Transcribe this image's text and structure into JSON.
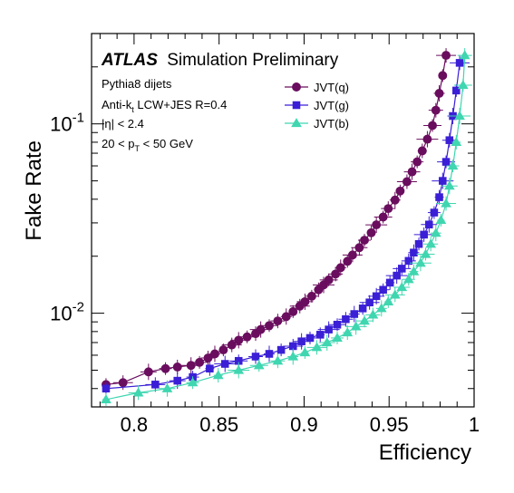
{
  "chart_data": {
    "type": "line",
    "title": "",
    "xlabel": "Efficiency",
    "ylabel": "Fake Rate",
    "xlim": [
      0.775,
      1.0
    ],
    "ylim": [
      0.0032,
      0.3
    ],
    "yscale": "log",
    "grid": false,
    "legend_position": "top-right",
    "x_ticks": [
      {
        "value": 0.8,
        "label": "0.8"
      },
      {
        "value": 0.85,
        "label": "0.85"
      },
      {
        "value": 0.9,
        "label": "0.9"
      },
      {
        "value": 0.95,
        "label": "0.95"
      },
      {
        "value": 1.0,
        "label": "1"
      }
    ],
    "y_ticks": [
      {
        "value": 0.01,
        "base": "10",
        "exp": "-2"
      },
      {
        "value": 0.1,
        "base": "10",
        "exp": "-1"
      }
    ],
    "annotations": {
      "atlas": "ATLAS",
      "atlas_sub": "Simulation Preliminary",
      "sample": "Pythia8 dijets",
      "jets_a": "Anti-k",
      "jets_sub": "t",
      "jets_b": " LCW+JES R=0.4",
      "eta": "|η| < 2.4",
      "pt_a": "20 < p",
      "pt_sub": "T",
      "pt_b": " < 50 GeV"
    },
    "series": [
      {
        "name": "JVT(q)",
        "color": "#6a0d5e",
        "marker": "circle",
        "points": [
          [
            0.7835,
            0.0042
          ],
          [
            0.7935,
            0.0043
          ],
          [
            0.8085,
            0.0049
          ],
          [
            0.8185,
            0.0051
          ],
          [
            0.8255,
            0.0052
          ],
          [
            0.8335,
            0.0053
          ],
          [
            0.8385,
            0.0055
          ],
          [
            0.8435,
            0.0058
          ],
          [
            0.8475,
            0.0061
          ],
          [
            0.8525,
            0.0064
          ],
          [
            0.8575,
            0.0068
          ],
          [
            0.8615,
            0.0072
          ],
          [
            0.8665,
            0.0075
          ],
          [
            0.8715,
            0.0078
          ],
          [
            0.8745,
            0.0082
          ],
          [
            0.8795,
            0.0086
          ],
          [
            0.8845,
            0.0091
          ],
          [
            0.8895,
            0.0096
          ],
          [
            0.8935,
            0.0102
          ],
          [
            0.8975,
            0.0109
          ],
          [
            0.9005,
            0.0115
          ],
          [
            0.9045,
            0.0123
          ],
          [
            0.9085,
            0.0133
          ],
          [
            0.9115,
            0.0141
          ],
          [
            0.9145,
            0.015
          ],
          [
            0.9185,
            0.0161
          ],
          [
            0.9215,
            0.0174
          ],
          [
            0.9255,
            0.0188
          ],
          [
            0.9285,
            0.0203
          ],
          [
            0.9325,
            0.0222
          ],
          [
            0.9355,
            0.0243
          ],
          [
            0.9395,
            0.0266
          ],
          [
            0.9425,
            0.0293
          ],
          [
            0.9465,
            0.0322
          ],
          [
            0.9495,
            0.0357
          ],
          [
            0.9535,
            0.0396
          ],
          [
            0.9565,
            0.0442
          ],
          [
            0.9605,
            0.0495
          ],
          [
            0.9635,
            0.0558
          ],
          [
            0.9665,
            0.063
          ],
          [
            0.9695,
            0.072
          ],
          [
            0.9725,
            0.083
          ],
          [
            0.9755,
            0.098
          ],
          [
            0.9775,
            0.118
          ],
          [
            0.9795,
            0.145
          ],
          [
            0.9815,
            0.18
          ],
          [
            0.9835,
            0.23
          ]
        ]
      },
      {
        "name": "JVT(g)",
        "color": "#3a1fd6",
        "marker": "square",
        "points": [
          [
            0.7835,
            0.004
          ],
          [
            0.8125,
            0.0042
          ],
          [
            0.8255,
            0.0044
          ],
          [
            0.8345,
            0.0046
          ],
          [
            0.8445,
            0.0051
          ],
          [
            0.8535,
            0.0054
          ],
          [
            0.8615,
            0.0056
          ],
          [
            0.8715,
            0.0059
          ],
          [
            0.8795,
            0.0061
          ],
          [
            0.8865,
            0.0064
          ],
          [
            0.8935,
            0.0067
          ],
          [
            0.8985,
            0.0071
          ],
          [
            0.9035,
            0.0074
          ],
          [
            0.9095,
            0.0077
          ],
          [
            0.9145,
            0.0082
          ],
          [
            0.9195,
            0.0087
          ],
          [
            0.9245,
            0.0093
          ],
          [
            0.9295,
            0.0099
          ],
          [
            0.9345,
            0.0106
          ],
          [
            0.9385,
            0.0114
          ],
          [
            0.9425,
            0.0123
          ],
          [
            0.9465,
            0.0133
          ],
          [
            0.9505,
            0.0145
          ],
          [
            0.9545,
            0.0158
          ],
          [
            0.9575,
            0.0172
          ],
          [
            0.9615,
            0.0189
          ],
          [
            0.9645,
            0.0209
          ],
          [
            0.9675,
            0.0232
          ],
          [
            0.9705,
            0.026
          ],
          [
            0.9735,
            0.0294
          ],
          [
            0.9765,
            0.034
          ],
          [
            0.9795,
            0.041
          ],
          [
            0.9815,
            0.05
          ],
          [
            0.9835,
            0.063
          ],
          [
            0.9855,
            0.082
          ],
          [
            0.9875,
            0.11
          ],
          [
            0.9895,
            0.15
          ],
          [
            0.9915,
            0.21
          ]
        ]
      },
      {
        "name": "JVT(b)",
        "color": "#3fd6b0",
        "marker": "triangle",
        "points": [
          [
            0.7835,
            0.0035
          ],
          [
            0.8025,
            0.0038
          ],
          [
            0.8195,
            0.004
          ],
          [
            0.8345,
            0.0043
          ],
          [
            0.8495,
            0.0047
          ],
          [
            0.8615,
            0.005
          ],
          [
            0.8735,
            0.0053
          ],
          [
            0.8845,
            0.0056
          ],
          [
            0.8935,
            0.0059
          ],
          [
            0.9005,
            0.0062
          ],
          [
            0.9075,
            0.0066
          ],
          [
            0.9135,
            0.007
          ],
          [
            0.9195,
            0.0074
          ],
          [
            0.9255,
            0.0079
          ],
          [
            0.9305,
            0.0085
          ],
          [
            0.9355,
            0.0091
          ],
          [
            0.9405,
            0.0098
          ],
          [
            0.9455,
            0.0106
          ],
          [
            0.9495,
            0.0115
          ],
          [
            0.9535,
            0.0125
          ],
          [
            0.9575,
            0.0137
          ],
          [
            0.9615,
            0.0151
          ],
          [
            0.9645,
            0.0166
          ],
          [
            0.9685,
            0.0184
          ],
          [
            0.9715,
            0.0205
          ],
          [
            0.9745,
            0.0232
          ],
          [
            0.9775,
            0.0265
          ],
          [
            0.9805,
            0.031
          ],
          [
            0.9835,
            0.038
          ],
          [
            0.9855,
            0.047
          ],
          [
            0.9875,
            0.06
          ],
          [
            0.9895,
            0.08
          ],
          [
            0.9915,
            0.11
          ],
          [
            0.9935,
            0.16
          ],
          [
            0.9945,
            0.23
          ]
        ]
      }
    ]
  }
}
